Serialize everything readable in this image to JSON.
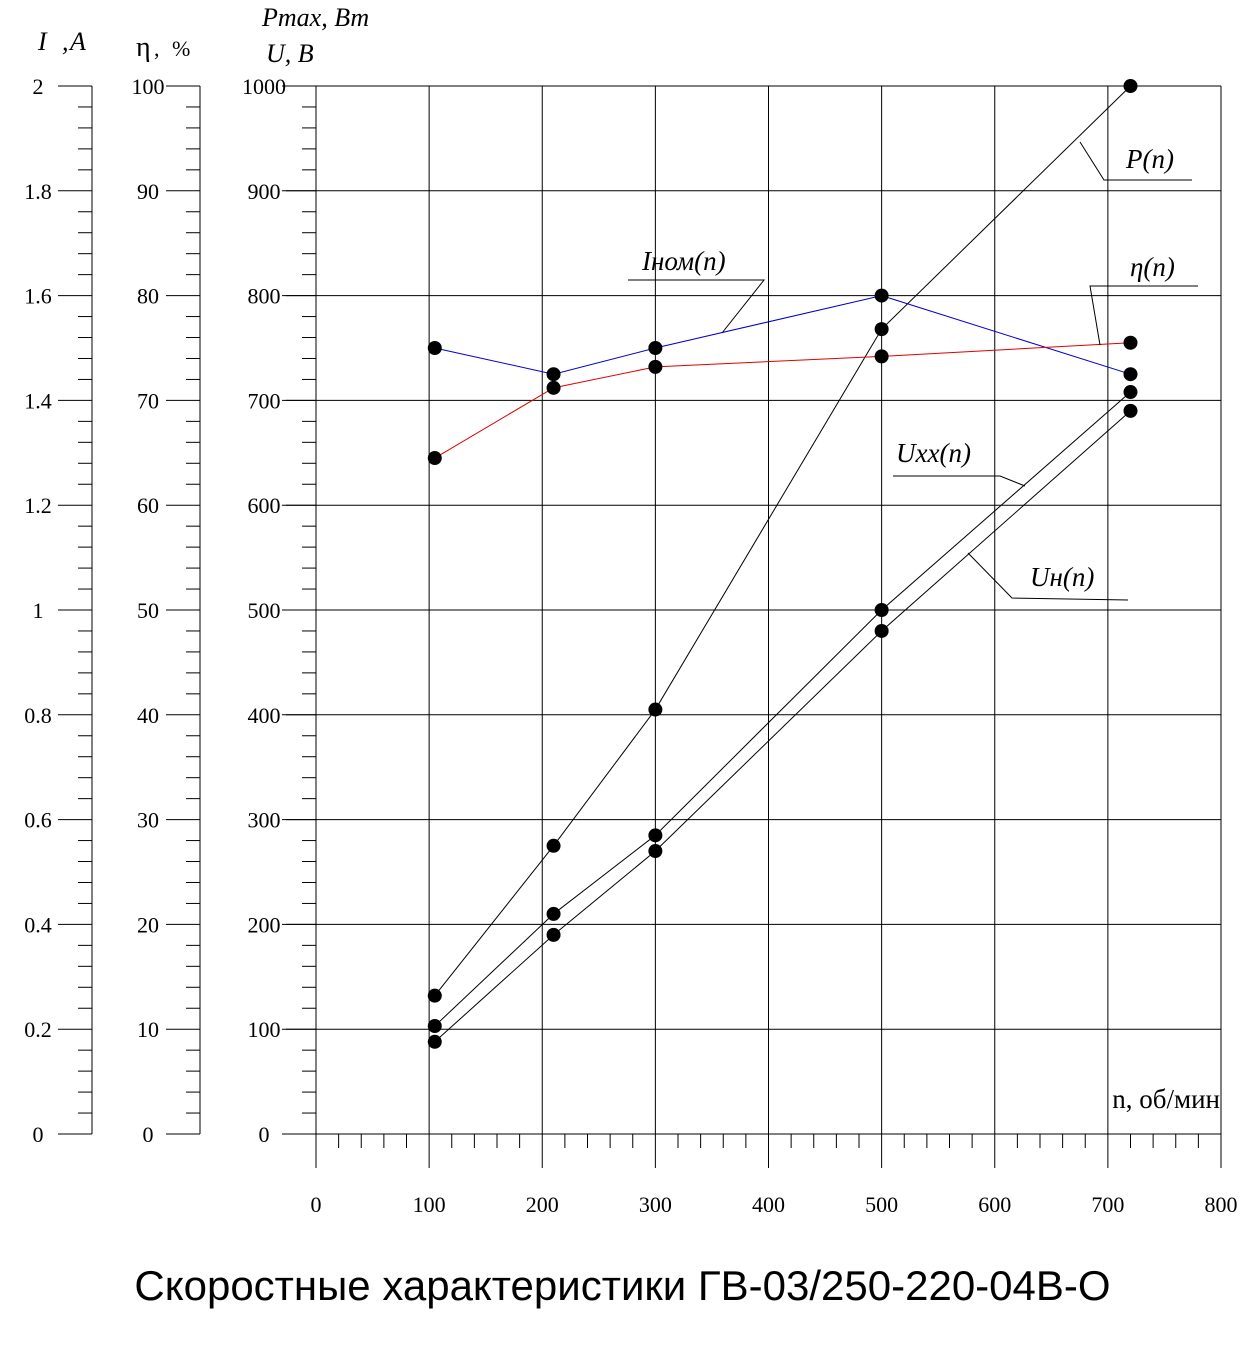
{
  "chart_data": {
    "type": "line",
    "title": "Скоростные характеристики ГВ-03/250-220-04В-О",
    "xlabel": "n, об/мин",
    "x_ticks": [
      "0",
      "100",
      "200",
      "300",
      "400",
      "500",
      "600",
      "700",
      "800"
    ],
    "xlim": [
      0,
      800
    ],
    "grid": true,
    "axes": {
      "current": {
        "label_main": "I",
        "label_unit": "A",
        "label": "I, A",
        "range": [
          0,
          2
        ],
        "ticks": [
          "0",
          "0.2",
          "0.4",
          "0.6",
          "0.8",
          "1",
          "1.2",
          "1.4",
          "1.6",
          "1.8",
          "2"
        ]
      },
      "efficiency": {
        "label_main": "η",
        "label_unit": "%",
        "label": "η, %",
        "range": [
          0,
          100
        ],
        "ticks": [
          "0",
          "10",
          "20",
          "30",
          "40",
          "50",
          "60",
          "70",
          "80",
          "90",
          "100"
        ]
      },
      "power_voltage": {
        "label_line1": "Pmax, Вт",
        "label_line2": "U, В",
        "range": [
          0,
          1000
        ],
        "ticks": [
          "0",
          "100",
          "200",
          "300",
          "400",
          "500",
          "600",
          "700",
          "800",
          "900",
          "1000"
        ]
      }
    },
    "series": [
      {
        "name": "P(n)",
        "axis": "power_voltage",
        "color": "#000000",
        "x": [
          105,
          210,
          300,
          500,
          720
        ],
        "values": [
          132,
          275,
          405,
          768,
          1000
        ]
      },
      {
        "name": "Iном(n)",
        "axis": "current",
        "color": "#0000cc",
        "x": [
          105,
          210,
          300,
          500,
          720
        ],
        "values": [
          1.5,
          1.45,
          1.5,
          1.6,
          1.45
        ]
      },
      {
        "name": "η(n)",
        "axis": "efficiency",
        "color": "#e00000",
        "x": [
          105,
          210,
          300,
          500,
          720
        ],
        "values": [
          64.5,
          71.2,
          73.2,
          74.2,
          75.5
        ]
      },
      {
        "name": "Uxx(n)",
        "axis": "power_voltage",
        "color": "#000000",
        "x": [
          105,
          210,
          300,
          500,
          720
        ],
        "values": [
          103,
          210,
          285,
          500,
          708
        ]
      },
      {
        "name": "Uн(n)",
        "axis": "power_voltage",
        "color": "#000000",
        "x": [
          105,
          210,
          300,
          500,
          720
        ],
        "values": [
          88,
          190,
          270,
          480,
          690
        ]
      }
    ]
  }
}
